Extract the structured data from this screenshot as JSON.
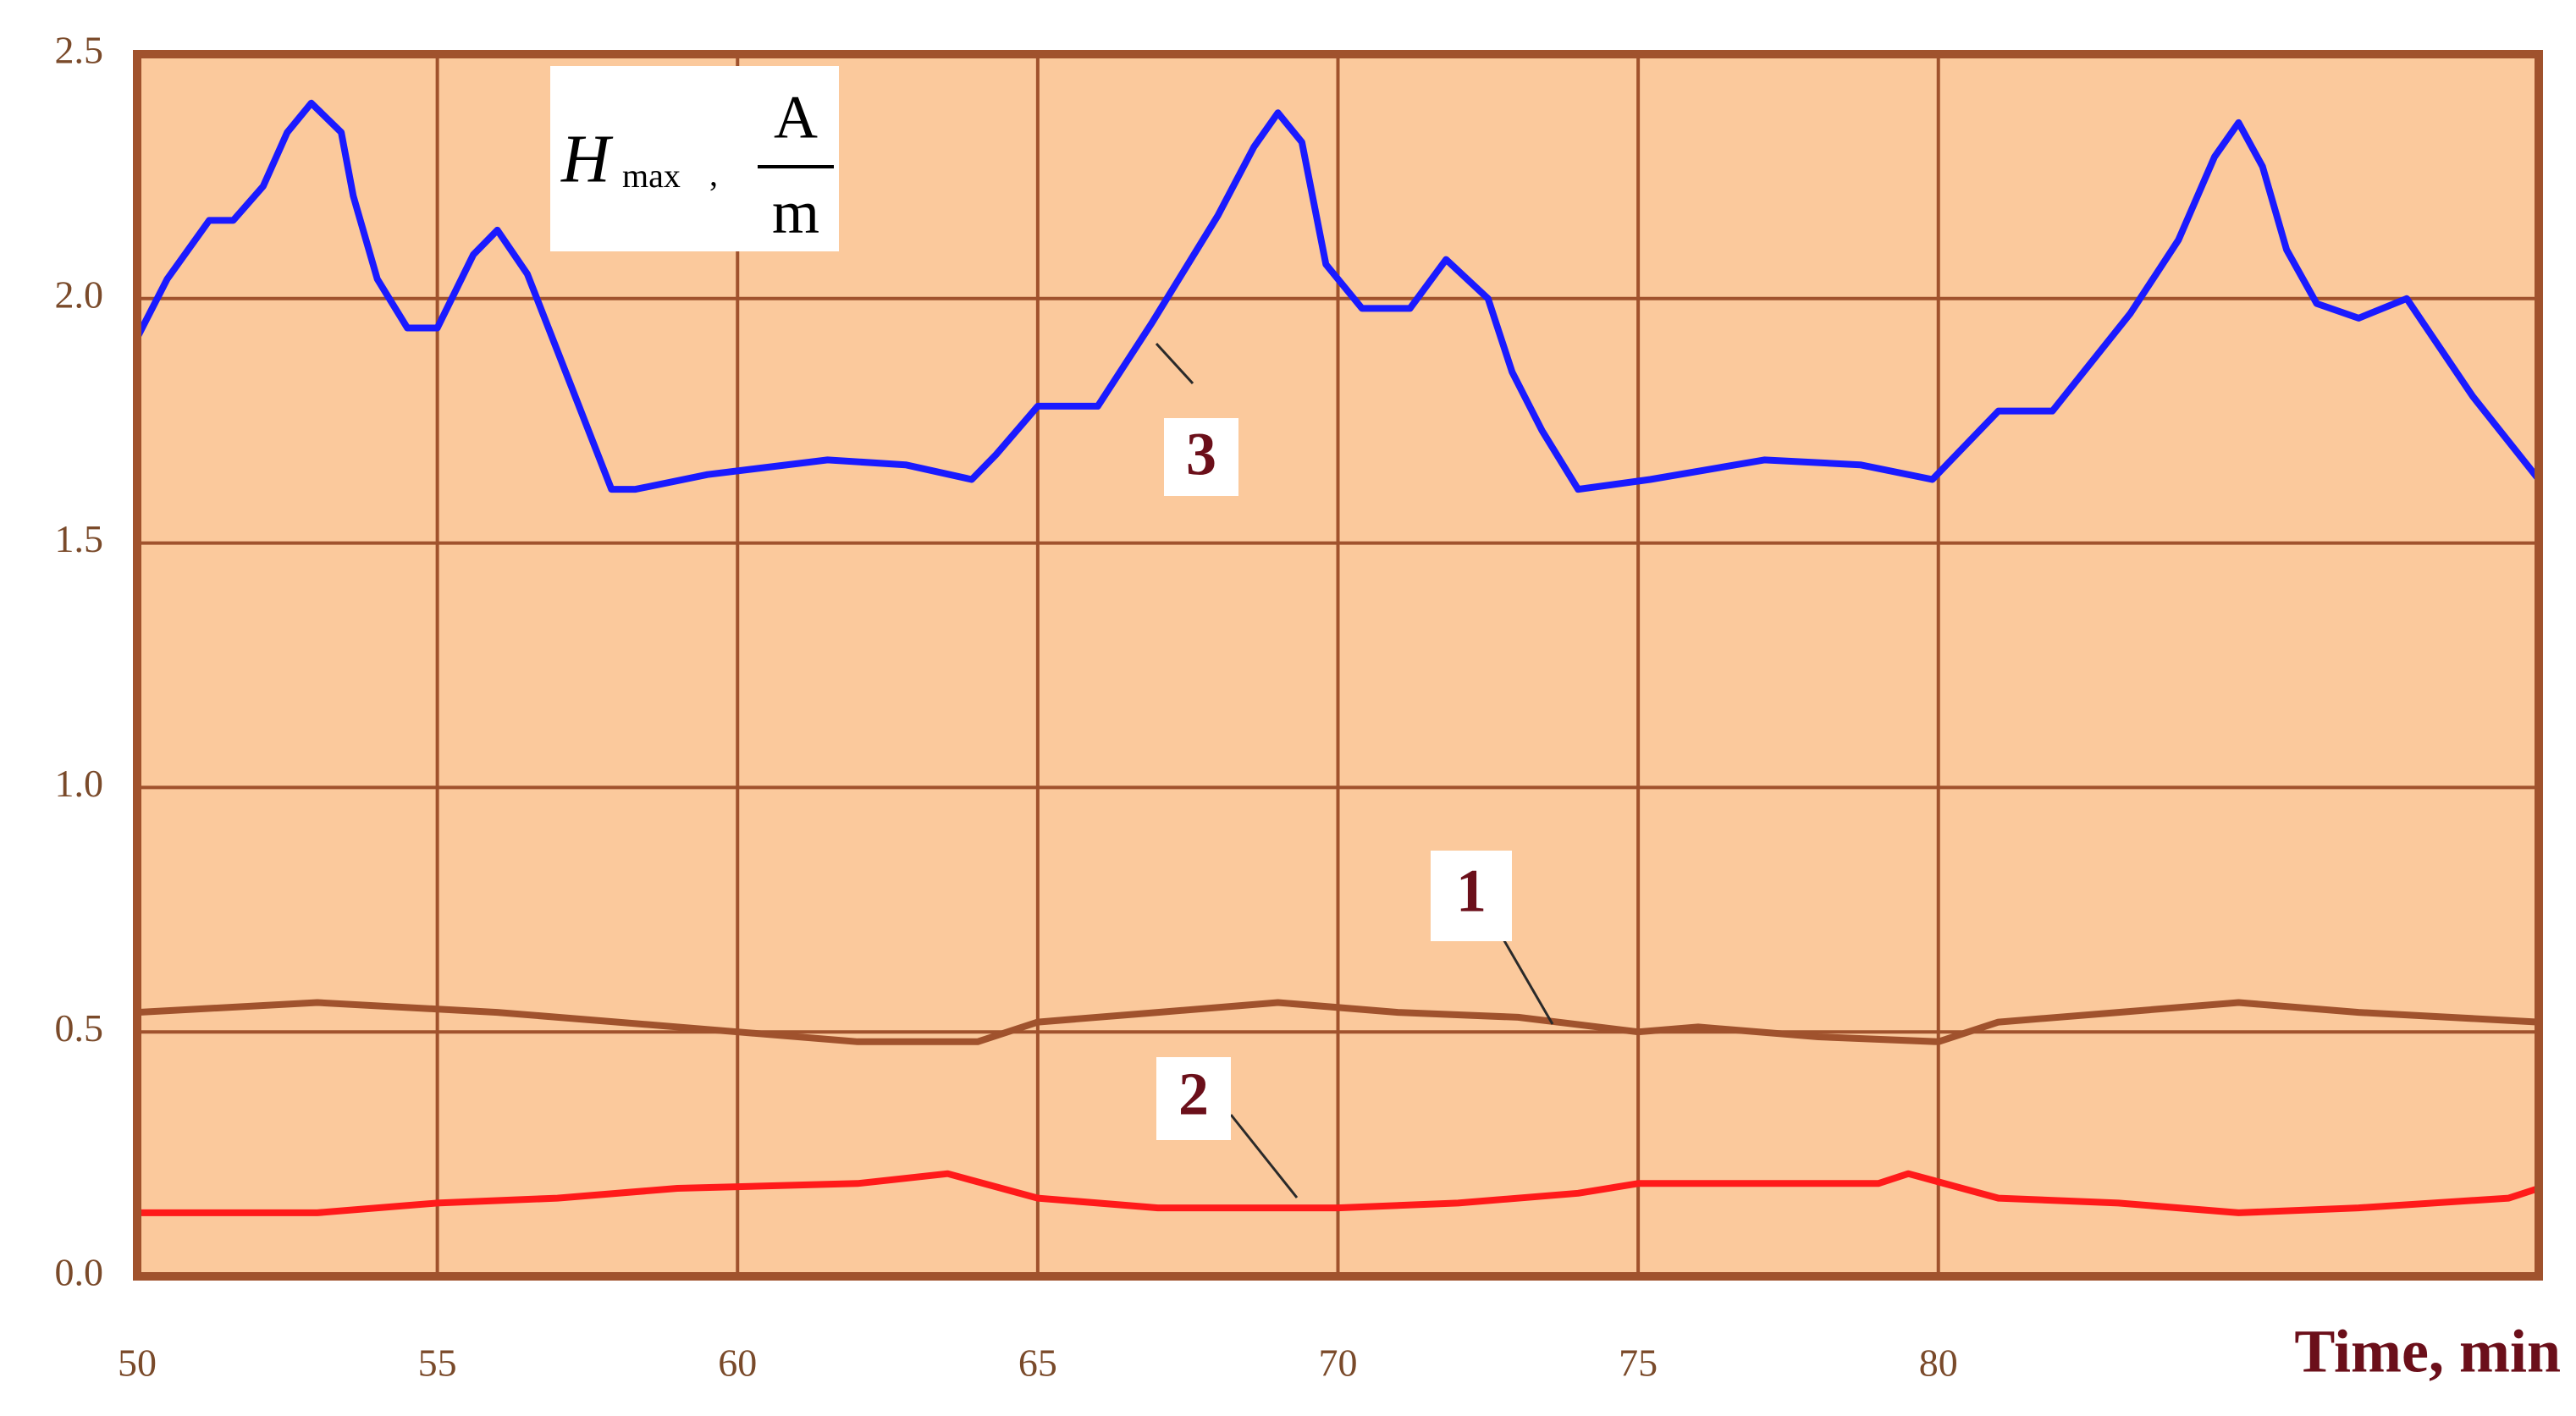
{
  "chart_data": {
    "type": "line",
    "x_label": "Time, min",
    "y_label": {
      "symbol": "H",
      "subscript": "max",
      "separator": ",",
      "numerator": "A",
      "denominator": "m"
    },
    "xlim": [
      50,
      90
    ],
    "xticks": [
      50,
      55,
      60,
      65,
      70,
      75,
      80
    ],
    "ylim": [
      0,
      2.5
    ],
    "yticks": [
      {
        "value": 0,
        "label": "0.0"
      },
      0.5,
      {
        "value": 1,
        "label": "1.0"
      },
      1.5,
      {
        "value": 2,
        "label": "2.0"
      },
      2.5
    ],
    "grid": true,
    "background": "#fbc99c",
    "frame_color": "#a0522d",
    "series": [
      {
        "name": "1",
        "color": "#a0522d",
        "x": [
          50,
          53,
          56,
          58,
          60,
          62,
          64,
          65,
          67,
          69,
          71,
          73,
          75,
          76,
          78,
          80,
          81,
          83,
          85,
          87,
          90
        ],
        "values": [
          0.54,
          0.56,
          0.54,
          0.52,
          0.5,
          0.48,
          0.48,
          0.52,
          0.54,
          0.56,
          0.54,
          0.53,
          0.5,
          0.51,
          0.49,
          0.48,
          0.52,
          0.54,
          0.56,
          0.54,
          0.52
        ]
      },
      {
        "name": "2",
        "color": "#ff1a1a",
        "x": [
          50,
          53,
          55,
          57,
          59,
          62,
          63.5,
          65,
          67,
          70,
          72,
          74,
          75,
          79,
          79.5,
          81,
          83,
          85,
          87,
          89.5,
          90
        ],
        "values": [
          0.13,
          0.13,
          0.15,
          0.16,
          0.18,
          0.19,
          0.21,
          0.16,
          0.14,
          0.14,
          0.15,
          0.17,
          0.19,
          0.19,
          0.21,
          0.16,
          0.15,
          0.13,
          0.14,
          0.16,
          0.18
        ]
      },
      {
        "name": "3",
        "color": "#1a1aff",
        "x": [
          50,
          50.5,
          51.2,
          51.6,
          52.1,
          52.5,
          52.9,
          53.4,
          53.6,
          54,
          54.5,
          55,
          55.6,
          56,
          56.5,
          57.2,
          57.9,
          58.3,
          59.5,
          61.5,
          62.8,
          63.9,
          64.3,
          65,
          66,
          66.9,
          68,
          68.6,
          69,
          69.4,
          69.8,
          70.4,
          71.2,
          71.8,
          72.5,
          72.9,
          73.4,
          74,
          75.2,
          77.1,
          78.7,
          79.9,
          81,
          81.9,
          83.2,
          84,
          84.6,
          85,
          85.4,
          85.8,
          86.3,
          87,
          87.8,
          88.9,
          90
        ],
        "values": [
          1.92,
          2.04,
          2.16,
          2.16,
          2.23,
          2.34,
          2.4,
          2.34,
          2.21,
          2.04,
          1.94,
          1.94,
          2.09,
          2.14,
          2.05,
          1.83,
          1.61,
          1.61,
          1.64,
          1.67,
          1.66,
          1.63,
          1.68,
          1.78,
          1.78,
          1.95,
          2.17,
          2.31,
          2.38,
          2.32,
          2.07,
          1.98,
          1.98,
          2.08,
          2.0,
          1.85,
          1.73,
          1.61,
          1.63,
          1.67,
          1.66,
          1.63,
          1.77,
          1.77,
          1.97,
          2.12,
          2.29,
          2.36,
          2.27,
          2.1,
          1.99,
          1.96,
          2.0,
          1.8,
          1.63
        ]
      }
    ]
  }
}
